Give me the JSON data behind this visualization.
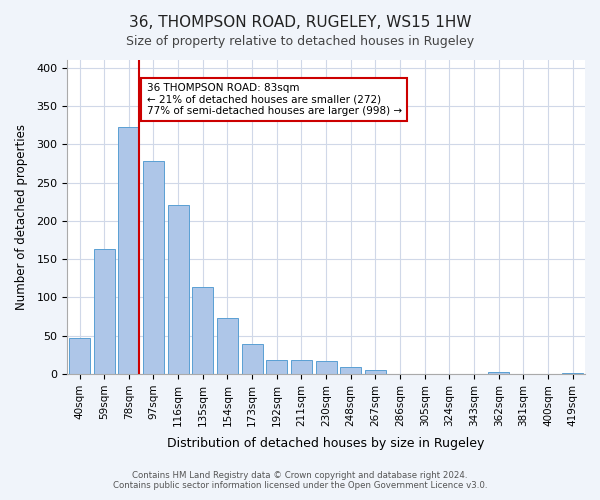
{
  "title_line1": "36, THOMPSON ROAD, RUGELEY, WS15 1HW",
  "title_line2": "Size of property relative to detached houses in Rugeley",
  "xlabel": "Distribution of detached houses by size in Rugeley",
  "ylabel": "Number of detached properties",
  "bar_labels": [
    "40sqm",
    "59sqm",
    "78sqm",
    "97sqm",
    "116sqm",
    "135sqm",
    "154sqm",
    "173sqm",
    "192sqm",
    "211sqm",
    "230sqm",
    "248sqm",
    "267sqm",
    "286sqm",
    "305sqm",
    "324sqm",
    "343sqm",
    "362sqm",
    "381sqm",
    "400sqm",
    "419sqm"
  ],
  "bar_values": [
    47,
    163,
    322,
    278,
    221,
    114,
    73,
    39,
    18,
    18,
    17,
    9,
    5,
    0,
    0,
    0,
    0,
    3,
    0,
    0,
    2
  ],
  "bar_color": "#aec6e8",
  "bar_edge_color": "#5a9fd4",
  "property_line_x": 2,
  "property_sqm": "83sqm",
  "annotation_title": "36 THOMPSON ROAD: 83sqm",
  "annotation_line1": "← 21% of detached houses are smaller (272)",
  "annotation_line2": "77% of semi-detached houses are larger (998) →",
  "annotation_box_color": "#ffffff",
  "annotation_box_edge": "#cc0000",
  "vline_color": "#cc0000",
  "ylim": [
    0,
    410
  ],
  "yticks": [
    0,
    50,
    100,
    150,
    200,
    250,
    300,
    350,
    400
  ],
  "footer_line1": "Contains HM Land Registry data © Crown copyright and database right 2024.",
  "footer_line2": "Contains public sector information licensed under the Open Government Licence v3.0.",
  "bg_color": "#f0f4fa",
  "plot_bg_color": "#ffffff",
  "grid_color": "#d0d8e8"
}
